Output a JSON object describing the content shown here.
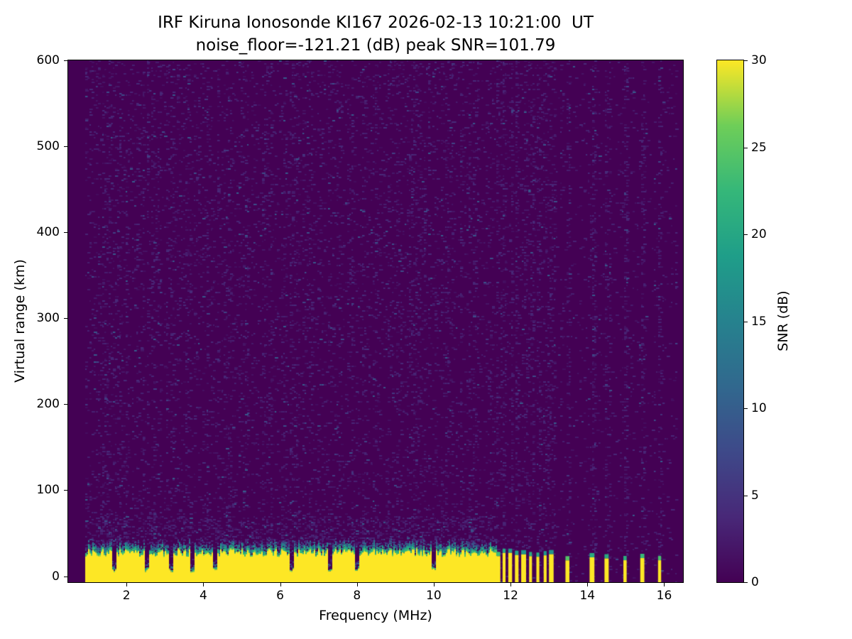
{
  "chart_data": {
    "type": "heatmap",
    "title": "IRF Kiruna Ionosonde KI167 2026-02-13 10:21:00  UT",
    "subtitle": "noise_floor=-121.21 (dB) peak SNR=101.79",
    "xlabel": "Frequency (MHz)",
    "ylabel": "Virtual range (km)",
    "x_ticks": [
      2,
      4,
      6,
      8,
      10,
      12,
      14,
      16
    ],
    "y_ticks": [
      0,
      100,
      200,
      300,
      400,
      500,
      600
    ],
    "xlim": [
      0.48,
      16.49
    ],
    "ylim": [
      -7,
      600
    ],
    "grid": false,
    "noise_floor_db": -121.21,
    "peak_snr_db": 101.79,
    "background_snr_db": 0,
    "data_freq_range_mhz": [
      0.9,
      16.33
    ],
    "colorbar": {
      "label": "SNR (dB)",
      "min": 0,
      "max": 30,
      "ticks": [
        0,
        5,
        10,
        15,
        20,
        25,
        30
      ],
      "colormap": "viridis",
      "stops": [
        [
          0,
          "#440154"
        ],
        [
          0.125,
          "#482878"
        ],
        [
          0.25,
          "#3e4989"
        ],
        [
          0.375,
          "#31688e"
        ],
        [
          0.5,
          "#26828e"
        ],
        [
          0.625,
          "#1f9e89"
        ],
        [
          0.75,
          "#35b779"
        ],
        [
          0.875,
          "#6ece58"
        ],
        [
          1,
          "#fde725"
        ]
      ]
    },
    "clutter_band": {
      "freq_start_mhz": 0.93,
      "freq_end_mhz": 11.62,
      "top_km_mean": 27,
      "top_km_jitter": 9,
      "snr_db": 30
    },
    "notch_freqs_mhz": [
      1.65,
      2.5,
      3.15,
      3.7,
      4.3,
      6.3,
      7.3,
      8.0,
      10.0
    ],
    "pulse_freqs_mhz": [
      11.68,
      11.83,
      11.99,
      12.16,
      12.34,
      12.52,
      12.71,
      12.9,
      13.06,
      13.48,
      14.12,
      14.5,
      14.98,
      15.43,
      15.88
    ],
    "noise_speckle": {
      "base_density_low_freq": 0.11,
      "base_density_high_freq": 0.045,
      "near_band_extra_density": 0.18,
      "typical_snr_db_range": [
        1,
        4
      ],
      "bright_speckle_snr_db_range": [
        4,
        10
      ]
    }
  }
}
